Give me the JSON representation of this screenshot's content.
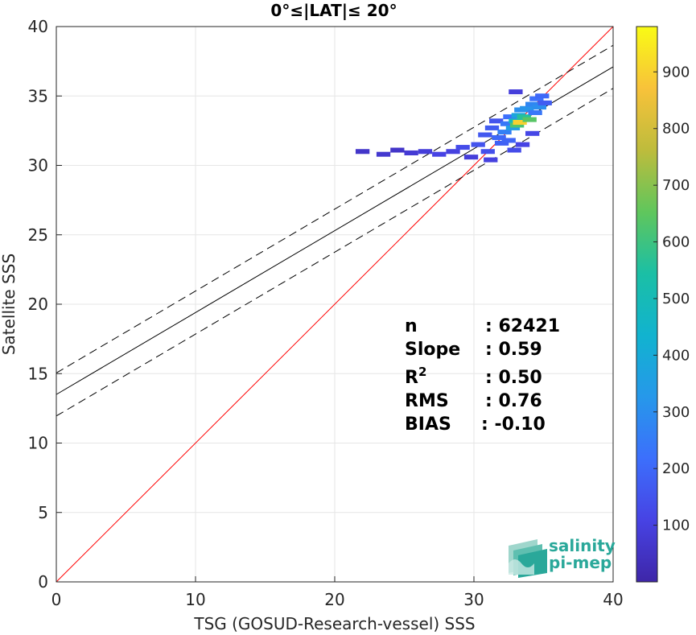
{
  "chart_data": {
    "type": "heatmap",
    "title": "0°≤|LAT|≤ 20°",
    "xlabel": "TSG (GOSUD-Research-vessel) SSS",
    "ylabel": "Satellite SSS",
    "xlim": [
      0,
      40
    ],
    "ylim": [
      0,
      40
    ],
    "x_ticks": [
      "0",
      "10",
      "20",
      "30",
      "40"
    ],
    "y_ticks": [
      "0",
      "5",
      "10",
      "15",
      "20",
      "25",
      "30",
      "35",
      "40"
    ],
    "grid": true,
    "stats": [
      {
        "label": "n",
        "value": ": 62421"
      },
      {
        "label": "Slope",
        "value": ": 0.59"
      },
      {
        "label": "R",
        "sup": "2",
        "value": ": 0.50"
      },
      {
        "label": "RMS",
        "value": ": 0.76"
      },
      {
        "label": "BIAS",
        "value": ": -0.10"
      }
    ],
    "lines": [
      {
        "name": "one_to_one",
        "slope": 1.0,
        "intercept": 0.0,
        "color": "#ff0000",
        "style": "solid"
      },
      {
        "name": "regression",
        "slope": 0.59,
        "intercept": 13.5,
        "color": "#000000",
        "style": "solid"
      },
      {
        "name": "regression_upper",
        "slope": 0.59,
        "intercept": 15.05,
        "color": "#000000",
        "style": "dashed"
      },
      {
        "name": "regression_lower",
        "slope": 0.59,
        "intercept": 11.95,
        "color": "#000000",
        "style": "dashed"
      }
    ],
    "density_cells": [
      {
        "x": 22.0,
        "y": 31.0,
        "c": 60
      },
      {
        "x": 23.5,
        "y": 30.8,
        "c": 70
      },
      {
        "x": 24.5,
        "y": 31.1,
        "c": 60
      },
      {
        "x": 25.5,
        "y": 30.9,
        "c": 80
      },
      {
        "x": 26.5,
        "y": 31.0,
        "c": 90
      },
      {
        "x": 27.5,
        "y": 30.8,
        "c": 110
      },
      {
        "x": 28.5,
        "y": 31.0,
        "c": 100
      },
      {
        "x": 29.2,
        "y": 31.3,
        "c": 130
      },
      {
        "x": 29.8,
        "y": 30.6,
        "c": 90
      },
      {
        "x": 30.3,
        "y": 31.5,
        "c": 150
      },
      {
        "x": 30.8,
        "y": 32.2,
        "c": 160
      },
      {
        "x": 31.0,
        "y": 31.0,
        "c": 140
      },
      {
        "x": 31.3,
        "y": 32.7,
        "c": 170
      },
      {
        "x": 31.6,
        "y": 33.2,
        "c": 150
      },
      {
        "x": 31.8,
        "y": 32.0,
        "c": 200
      },
      {
        "x": 32.0,
        "y": 31.6,
        "c": 180
      },
      {
        "x": 32.2,
        "y": 32.4,
        "c": 260
      },
      {
        "x": 32.4,
        "y": 33.0,
        "c": 240
      },
      {
        "x": 32.5,
        "y": 31.8,
        "c": 190
      },
      {
        "x": 32.6,
        "y": 33.5,
        "c": 220
      },
      {
        "x": 32.8,
        "y": 32.7,
        "c": 350
      },
      {
        "x": 33.0,
        "y": 33.2,
        "c": 480
      },
      {
        "x": 33.1,
        "y": 32.9,
        "c": 620
      },
      {
        "x": 33.2,
        "y": 33.6,
        "c": 380
      },
      {
        "x": 33.3,
        "y": 33.1,
        "c": 900
      },
      {
        "x": 33.4,
        "y": 34.0,
        "c": 300
      },
      {
        "x": 33.6,
        "y": 33.5,
        "c": 560
      },
      {
        "x": 33.8,
        "y": 34.1,
        "c": 320
      },
      {
        "x": 34.0,
        "y": 33.3,
        "c": 640
      },
      {
        "x": 34.2,
        "y": 34.4,
        "c": 280
      },
      {
        "x": 34.4,
        "y": 33.8,
        "c": 240
      },
      {
        "x": 34.5,
        "y": 34.8,
        "c": 220
      },
      {
        "x": 34.7,
        "y": 34.2,
        "c": 300
      },
      {
        "x": 34.9,
        "y": 35.0,
        "c": 200
      },
      {
        "x": 35.1,
        "y": 34.5,
        "c": 170
      },
      {
        "x": 33.0,
        "y": 35.3,
        "c": 90
      },
      {
        "x": 33.5,
        "y": 31.5,
        "c": 110
      },
      {
        "x": 34.2,
        "y": 32.3,
        "c": 120
      },
      {
        "x": 31.2,
        "y": 30.4,
        "c": 100
      },
      {
        "x": 32.9,
        "y": 31.1,
        "c": 130
      }
    ],
    "colorbar": {
      "range": [
        0,
        980
      ],
      "ticks": [
        "100",
        "200",
        "300",
        "400",
        "500",
        "600",
        "700",
        "800",
        "900"
      ],
      "colors": [
        "#3e26a8",
        "#4743e4",
        "#3c6ffc",
        "#2698ea",
        "#11b3cf",
        "#1bbfa5",
        "#60c65c",
        "#bebc3c",
        "#f8c23a",
        "#f9fb15"
      ]
    }
  },
  "logo": {
    "line1": "salinity",
    "line2": "pi-mep",
    "color": "#2aa89a"
  }
}
